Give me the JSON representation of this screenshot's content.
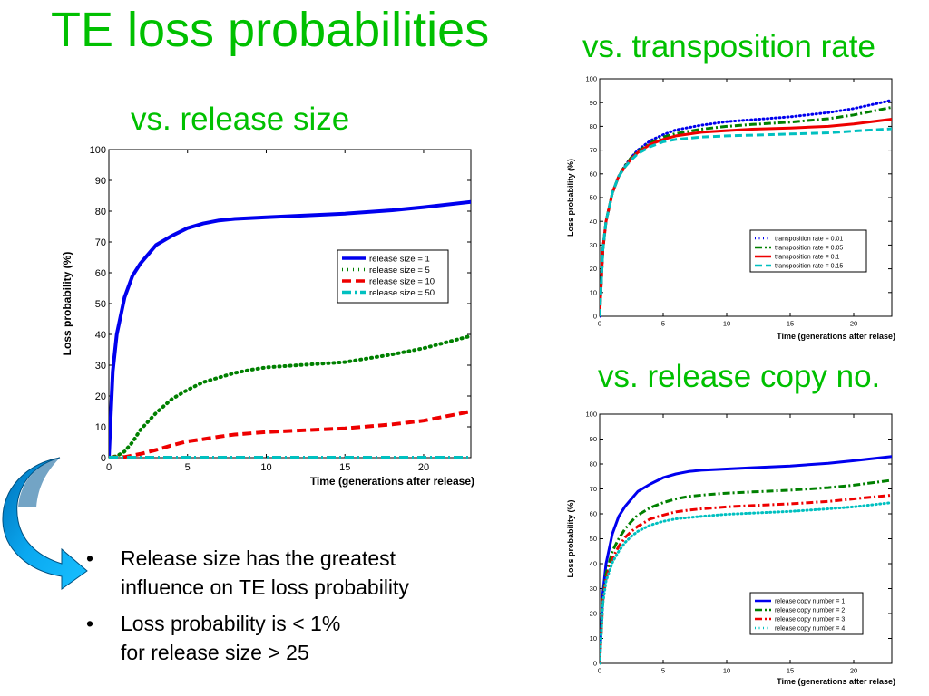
{
  "slide": {
    "title": "TE loss probabilities",
    "subtitles": {
      "release_size": "vs. release size",
      "transposition_rate": "vs. transposition rate",
      "release_copy": "vs. release copy no."
    },
    "bullets": [
      {
        "lines": [
          "Release size has the greatest",
          "influence on TE loss probability"
        ]
      },
      {
        "lines": [
          "Loss probability is < 1%",
          "for release size > 25"
        ]
      }
    ],
    "arrow_icon": "curved-arrow-icon",
    "colors": {
      "title": "#00c000",
      "arrow_fill": "#0099e0",
      "arrow_dark": "#0060a0"
    }
  },
  "chart_data": [
    {
      "type": "line",
      "xlabel": "Time (generations after release)",
      "ylabel": "Loss probability (%)",
      "xlim": [
        0,
        23
      ],
      "ylim": [
        0,
        100
      ],
      "xticks": [
        0,
        5,
        10,
        15,
        20
      ],
      "yticks": [
        0,
        10,
        20,
        30,
        40,
        50,
        60,
        70,
        80,
        90,
        100
      ],
      "legend_position": "center-right",
      "series": [
        {
          "name": "release size = 1",
          "color": "#0000ee",
          "dash": "solid",
          "x": [
            0,
            0.25,
            0.5,
            1,
            1.5,
            2,
            2.5,
            3,
            4,
            5,
            6,
            7,
            8,
            10,
            12,
            15,
            18,
            20,
            23
          ],
          "y": [
            0,
            28,
            40,
            52,
            59,
            63,
            66,
            69,
            72,
            74.5,
            76,
            77,
            77.5,
            78,
            78.5,
            79.2,
            80.3,
            81.3,
            83
          ]
        },
        {
          "name": "release size = 5",
          "color": "#008000",
          "dash": "dot",
          "x": [
            0,
            0.5,
            1,
            1.5,
            2,
            3,
            4,
            5,
            6,
            7,
            8,
            9,
            10,
            12,
            15,
            18,
            20,
            23
          ],
          "y": [
            0,
            0.5,
            2,
            5,
            9,
            14.5,
            19,
            22,
            24.5,
            26,
            27.5,
            28.5,
            29.3,
            30,
            31,
            33.5,
            35.5,
            39.5
          ]
        },
        {
          "name": "release size = 10",
          "color": "#ee0000",
          "dash": "dash",
          "x": [
            0,
            1,
            2,
            3,
            4,
            5,
            6,
            7,
            8,
            10,
            12,
            15,
            18,
            20,
            23
          ],
          "y": [
            0,
            0.2,
            1.2,
            2.5,
            4,
            5.3,
            6,
            6.8,
            7.5,
            8.3,
            8.8,
            9.5,
            10.8,
            12,
            15
          ]
        },
        {
          "name": "release size = 50",
          "color": "#00c0c0",
          "dash": "dashdot",
          "x": [
            0,
            5,
            10,
            15,
            20,
            23
          ],
          "y": [
            0,
            0,
            0,
            0,
            0,
            0
          ]
        }
      ]
    },
    {
      "type": "line",
      "xlabel": "Time (generations after relase)",
      "ylabel": "Loss probability (%)",
      "xlim": [
        0,
        23
      ],
      "ylim": [
        0,
        100
      ],
      "xticks": [
        0,
        5,
        10,
        15,
        20
      ],
      "yticks": [
        0,
        10,
        20,
        30,
        40,
        50,
        60,
        70,
        80,
        90,
        100
      ],
      "legend_position": "bottom-right",
      "series": [
        {
          "name": "transposition rate = 0.01",
          "color": "#0000ee",
          "dash": "dot",
          "x": [
            0,
            0.25,
            0.5,
            1,
            1.5,
            2,
            2.5,
            3,
            4,
            5,
            6,
            8,
            10,
            12,
            15,
            18,
            20,
            23
          ],
          "y": [
            0,
            28,
            40,
            52,
            59,
            63.5,
            67,
            70,
            74,
            76.5,
            78.5,
            80.5,
            82,
            82.8,
            84,
            85.8,
            87.5,
            91
          ]
        },
        {
          "name": "transposition rate = 0.05",
          "color": "#008000",
          "dash": "dashdot",
          "x": [
            0,
            0.25,
            0.5,
            1,
            1.5,
            2,
            2.5,
            3,
            4,
            5,
            6,
            8,
            10,
            12,
            15,
            18,
            20,
            23
          ],
          "y": [
            0,
            28,
            40,
            52,
            59,
            63.5,
            67,
            69.5,
            73,
            75.5,
            77,
            78.8,
            80,
            80.8,
            81.8,
            83.2,
            84.8,
            88
          ]
        },
        {
          "name": "transposition rate = 0.1",
          "color": "#ee0000",
          "dash": "solid",
          "x": [
            0,
            0.25,
            0.5,
            1,
            1.5,
            2,
            2.5,
            3,
            4,
            5,
            6,
            8,
            10,
            12,
            15,
            18,
            20,
            23
          ],
          "y": [
            0,
            28,
            40,
            52,
            59,
            63,
            66.5,
            69,
            72.5,
            74.5,
            76,
            77.5,
            78.2,
            78.8,
            79.3,
            80,
            81,
            83
          ]
        },
        {
          "name": "transposition rate = 0.15",
          "color": "#00c0c0",
          "dash": "dash",
          "x": [
            0,
            0.25,
            0.5,
            1,
            1.5,
            2,
            2.5,
            3,
            4,
            5,
            6,
            8,
            10,
            12,
            15,
            18,
            20,
            23
          ],
          "y": [
            0,
            28,
            40,
            52,
            59,
            63,
            66,
            68.5,
            71.5,
            73.5,
            74.5,
            75.5,
            76,
            76.3,
            76.8,
            77.3,
            78,
            79
          ]
        }
      ]
    },
    {
      "type": "line",
      "xlabel": "Time (generations after relase)",
      "ylabel": "Loss probability (%)",
      "xlim": [
        0,
        23
      ],
      "ylim": [
        0,
        100
      ],
      "xticks": [
        0,
        5,
        10,
        15,
        20
      ],
      "yticks": [
        0,
        10,
        20,
        30,
        40,
        50,
        60,
        70,
        80,
        90,
        100
      ],
      "legend_position": "bottom-right",
      "series": [
        {
          "name": "release copy number = 1",
          "color": "#0000ee",
          "dash": "solid",
          "x": [
            0,
            0.25,
            0.5,
            1,
            1.5,
            2,
            2.5,
            3,
            4,
            5,
            6,
            7,
            8,
            10,
            12,
            15,
            18,
            20,
            23
          ],
          "y": [
            0,
            28,
            40,
            52,
            59,
            63,
            66,
            69,
            72,
            74.5,
            76,
            77,
            77.5,
            78,
            78.5,
            79.2,
            80.3,
            81.3,
            83
          ]
        },
        {
          "name": "release copy number = 2",
          "color": "#008000",
          "dash": "dashdot",
          "x": [
            0,
            0.25,
            0.5,
            1,
            1.5,
            2,
            2.5,
            3,
            4,
            5,
            6,
            7,
            8,
            10,
            12,
            15,
            18,
            20,
            23
          ],
          "y": [
            0,
            26,
            36,
            45,
            50,
            54,
            57,
            59.5,
            62.5,
            64.5,
            66,
            67,
            67.5,
            68.3,
            68.8,
            69.5,
            70.5,
            71.5,
            73.5
          ]
        },
        {
          "name": "release copy number = 3",
          "color": "#ee0000",
          "dash": "dashdot",
          "x": [
            0,
            0.25,
            0.5,
            1,
            1.5,
            2,
            2.5,
            3,
            4,
            5,
            6,
            7,
            8,
            10,
            12,
            15,
            18,
            20,
            23
          ],
          "y": [
            0,
            25,
            34,
            42,
            47,
            50.5,
            53,
            55,
            58,
            59.5,
            60.8,
            61.5,
            62,
            62.8,
            63.3,
            64,
            65,
            66,
            67.5
          ]
        },
        {
          "name": "release copy number = 4",
          "color": "#00c0c0",
          "dash": "dot",
          "x": [
            0,
            0.25,
            0.5,
            1,
            1.5,
            2,
            2.5,
            3,
            4,
            5,
            6,
            7,
            8,
            10,
            12,
            15,
            18,
            20,
            23
          ],
          "y": [
            0,
            24,
            33,
            40.5,
            45,
            48.5,
            51,
            53,
            55.5,
            57,
            58,
            58.5,
            59,
            59.8,
            60.3,
            61,
            62,
            62.8,
            64.5
          ]
        }
      ]
    }
  ]
}
